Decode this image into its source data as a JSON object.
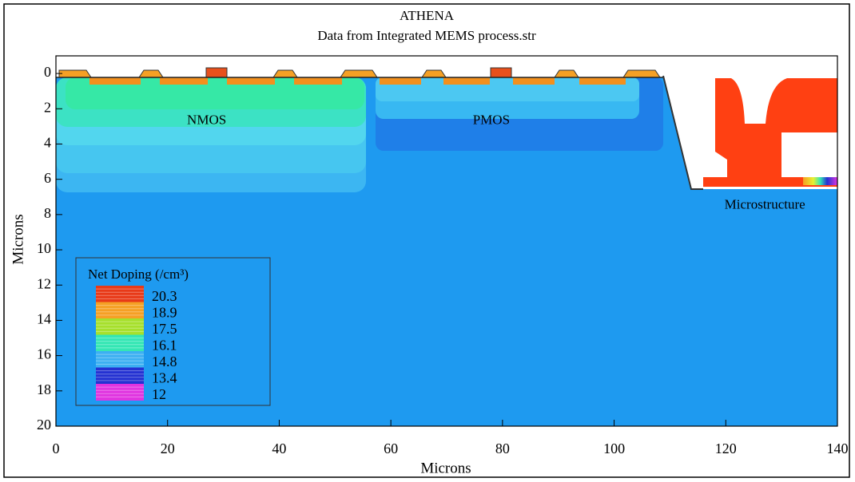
{
  "chart_data": {
    "type": "contour",
    "title": "ATHENA",
    "subtitle": "Data from Integrated MEMS process.str",
    "x_label": "Microns",
    "y_label": "Microns",
    "xlim": [
      0,
      140
    ],
    "ylim": [
      -1,
      20
    ],
    "y_inverted": true,
    "xticks": [
      0,
      20,
      40,
      60,
      80,
      100,
      120,
      140
    ],
    "yticks": [
      0,
      2,
      4,
      6,
      8,
      10,
      12,
      14,
      16,
      18,
      20
    ],
    "annotations": [
      {
        "text": "NMOS",
        "x": 27,
        "y": 2.7
      },
      {
        "text": "PMOS",
        "x": 78,
        "y": 2.7
      },
      {
        "text": "Microstructure",
        "x": 127,
        "y": 7.5
      }
    ],
    "colorbar": {
      "title": "Net Doping (/cm³)",
      "levels": [
        20.3,
        18.9,
        17.5,
        16.1,
        14.8,
        13.4,
        12
      ],
      "colors": [
        "#e83a18",
        "#f5a024",
        "#a6e02c",
        "#34e6b4",
        "#3cb0f2",
        "#2432d2",
        "#e034e0"
      ]
    }
  }
}
